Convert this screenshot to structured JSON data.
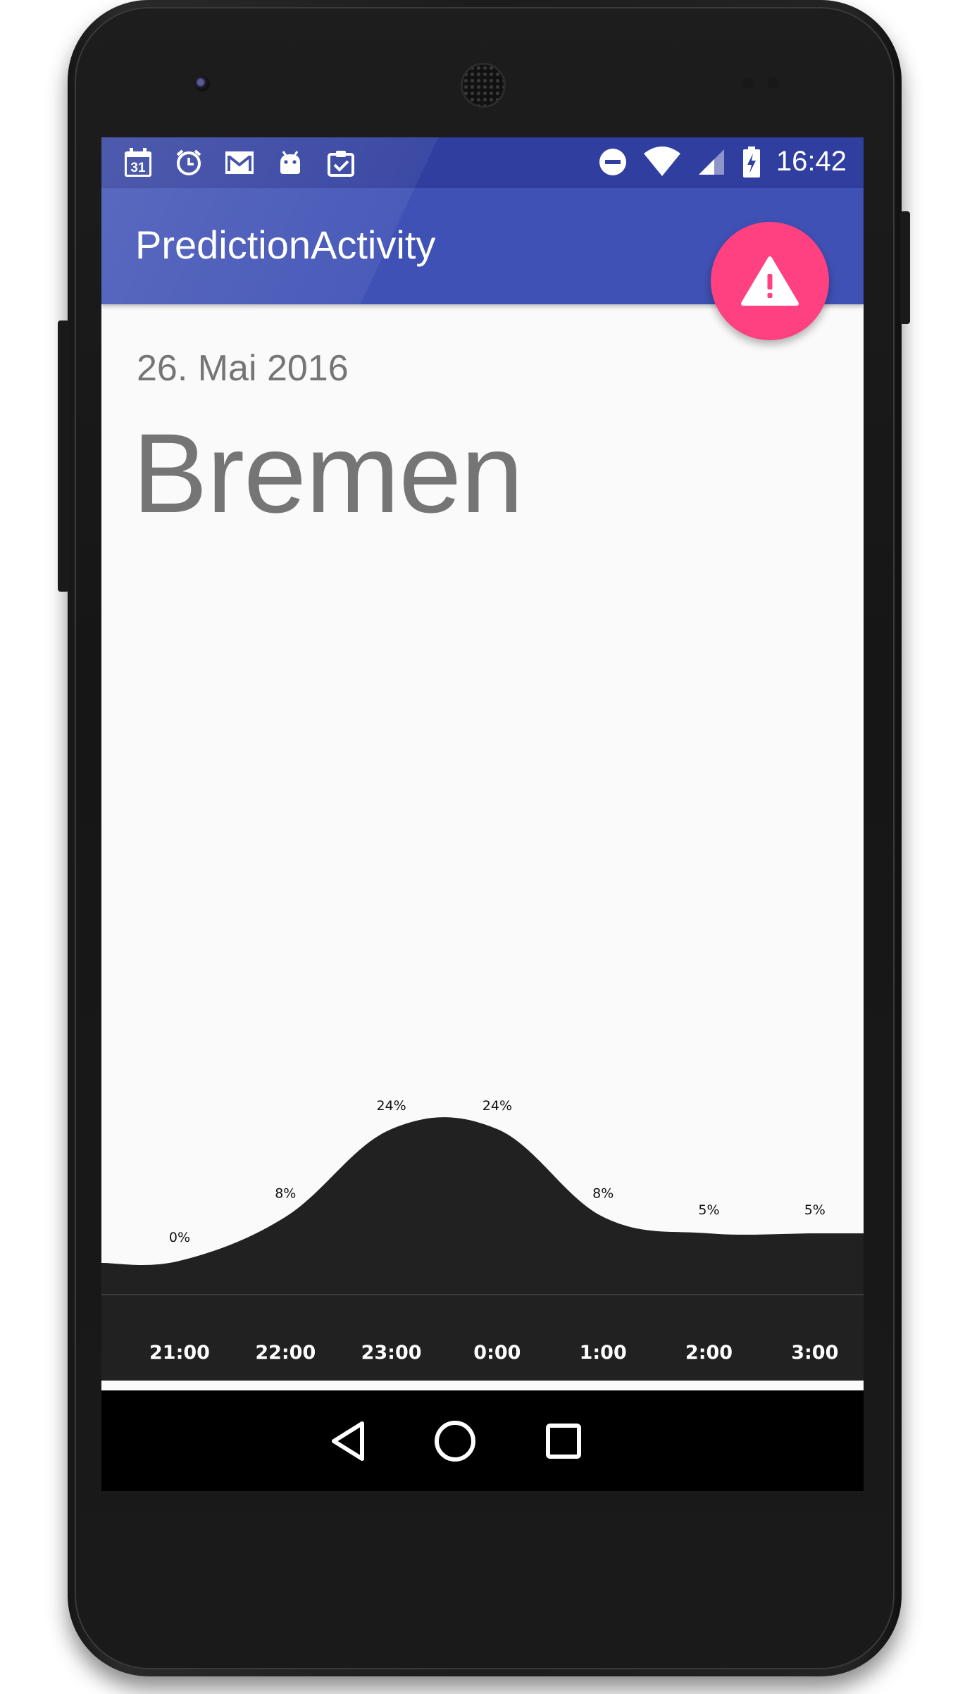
{
  "status_bar": {
    "time": "16:42",
    "left_icons": [
      "calendar-icon",
      "alarm-icon",
      "gmail-icon",
      "android-icon",
      "clipboard-check-icon"
    ],
    "calendar_day": "31",
    "right_icons": [
      "do-not-disturb-icon",
      "wifi-icon",
      "signal-icon",
      "battery-charging-icon"
    ]
  },
  "app_bar": {
    "title": "PredictionActivity",
    "primary_color": "#3f51b5",
    "status_color": "#303f9f"
  },
  "fab": {
    "icon": "warning-icon",
    "color": "#ff4081"
  },
  "header": {
    "date": "26. Mai 2016",
    "city": "Bremen"
  },
  "chart_data": {
    "type": "area",
    "x": [
      "21:00",
      "22:00",
      "23:00",
      "0:00",
      "1:00",
      "2:00",
      "3:00"
    ],
    "values": [
      0,
      8,
      24,
      24,
      8,
      5,
      5
    ],
    "value_labels": [
      "0%",
      "8%",
      "24%",
      "24%",
      "8%",
      "5%",
      "5%"
    ],
    "fill_color": "#212121",
    "grid": false
  },
  "nav_bar": {
    "icons": [
      "back-icon",
      "home-icon",
      "recents-icon"
    ]
  }
}
